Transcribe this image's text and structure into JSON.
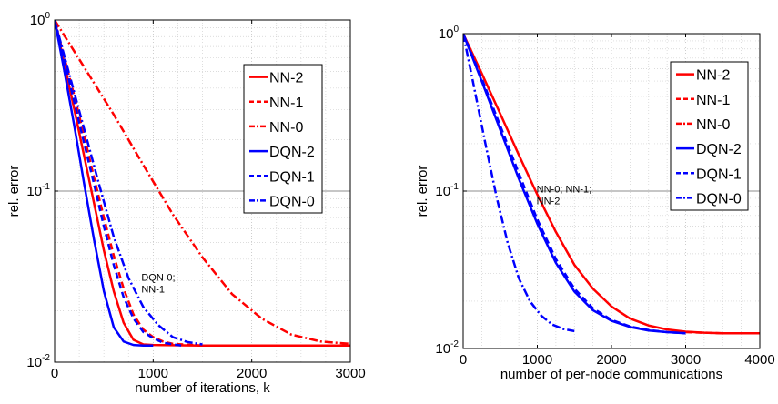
{
  "chart_data": [
    {
      "type": "line",
      "title": "",
      "xlabel": "number of iterations, k",
      "ylabel": "rel. error",
      "xlim": [
        0,
        3000
      ],
      "ylim": [
        0.01,
        1
      ],
      "yscale": "log",
      "grid": true,
      "legend_position": "top-right",
      "x_ticks": [
        "0",
        "1000",
        "2000",
        "3000"
      ],
      "y_ticks": [
        {
          "base": "10",
          "exp": "-2"
        },
        {
          "base": "10",
          "exp": "-1"
        },
        {
          "base": "10",
          "exp": "0"
        }
      ],
      "series": [
        {
          "name": "NN-2",
          "color": "#ff0000",
          "dash": "solid",
          "x": [
            0,
            100,
            200,
            300,
            400,
            500,
            600,
            700,
            800,
            900,
            1000,
            1500,
            3000
          ],
          "y": [
            1,
            0.55,
            0.3,
            0.16,
            0.085,
            0.045,
            0.026,
            0.017,
            0.0135,
            0.0127,
            0.0126,
            0.0125,
            0.0125
          ]
        },
        {
          "name": "NN-1",
          "color": "#ff0000",
          "dash": "dashed",
          "x": [
            0,
            100,
            200,
            300,
            400,
            500,
            600,
            700,
            800,
            900,
            1000,
            1100,
            1200,
            1500,
            3000
          ],
          "y": [
            1,
            0.6,
            0.36,
            0.21,
            0.12,
            0.07,
            0.042,
            0.027,
            0.019,
            0.0155,
            0.014,
            0.0132,
            0.0128,
            0.0125,
            0.0125
          ]
        },
        {
          "name": "NN-0",
          "color": "#ff0000",
          "dash": "dashdot",
          "x": [
            0,
            300,
            600,
            900,
            1200,
            1500,
            1800,
            2100,
            2400,
            2700,
            3000
          ],
          "y": [
            1,
            0.53,
            0.28,
            0.142,
            0.073,
            0.041,
            0.025,
            0.018,
            0.0145,
            0.0132,
            0.0128
          ]
        },
        {
          "name": "DQN-2",
          "color": "#0000ff",
          "dash": "solid",
          "x": [
            0,
            100,
            200,
            300,
            400,
            500,
            600,
            700,
            800,
            900,
            1000
          ],
          "y": [
            1,
            0.5,
            0.24,
            0.11,
            0.052,
            0.026,
            0.016,
            0.0132,
            0.0126,
            0.0125,
            0.0125
          ]
        },
        {
          "name": "DQN-1",
          "color": "#0000ff",
          "dash": "dashed",
          "x": [
            0,
            100,
            200,
            300,
            400,
            500,
            600,
            700,
            800,
            900,
            1000,
            1100,
            1200,
            1300
          ],
          "y": [
            1,
            0.58,
            0.33,
            0.19,
            0.11,
            0.062,
            0.037,
            0.024,
            0.018,
            0.015,
            0.0138,
            0.013,
            0.0127,
            0.0125
          ]
        },
        {
          "name": "DQN-0",
          "color": "#0000ff",
          "dash": "dashdot",
          "x": [
            0,
            150,
            300,
            450,
            600,
            750,
            900,
            1050,
            1200,
            1350,
            1500
          ],
          "y": [
            1,
            0.48,
            0.23,
            0.11,
            0.054,
            0.031,
            0.021,
            0.0165,
            0.014,
            0.0131,
            0.0127
          ]
        }
      ],
      "annotations": [
        {
          "lines": [
            "DQN-0;",
            "NN-1"
          ],
          "x": 880,
          "y": 0.03
        }
      ]
    },
    {
      "type": "line",
      "title": "",
      "xlabel": "number of per-node communications",
      "ylabel": "rel. error",
      "xlim": [
        0,
        4000
      ],
      "ylim": [
        0.01,
        1
      ],
      "yscale": "log",
      "grid": true,
      "legend_position": "top-right",
      "x_ticks": [
        "0",
        "1000",
        "2000",
        "3000",
        "4000"
      ],
      "y_ticks": [
        {
          "base": "10",
          "exp": "-2"
        },
        {
          "base": "10",
          "exp": "-1"
        },
        {
          "base": "10",
          "exp": "0"
        }
      ],
      "series": [
        {
          "name": "NN-2",
          "color": "#ff0000",
          "dash": "solid",
          "x": [
            0,
            250,
            500,
            750,
            1000,
            1250,
            1500,
            1750,
            2000,
            2250,
            2500,
            2750,
            3000,
            3250,
            3500,
            4000
          ],
          "y": [
            1,
            0.56,
            0.31,
            0.17,
            0.095,
            0.055,
            0.034,
            0.024,
            0.0185,
            0.0155,
            0.014,
            0.0132,
            0.0128,
            0.0126,
            0.0125,
            0.0125
          ]
        },
        {
          "name": "NN-1",
          "color": "#ff0000",
          "dash": "dashed",
          "x": [
            3000,
            3250,
            3500,
            3750,
            4000
          ],
          "y": [
            0.0127,
            0.0126,
            0.0125,
            0.0125,
            0.0125
          ]
        },
        {
          "name": "NN-0",
          "color": "#ff0000",
          "dash": "dashdot",
          "x": [
            3600,
            3800,
            4000
          ],
          "y": [
            0.0125,
            0.0125,
            0.0125
          ]
        },
        {
          "name": "DQN-2",
          "color": "#0000ff",
          "dash": "solid",
          "x": [
            0,
            250,
            500,
            750,
            1000,
            1250,
            1500,
            1750,
            2000,
            2250,
            2500,
            2750,
            3000
          ],
          "y": [
            1,
            0.5,
            0.245,
            0.12,
            0.062,
            0.035,
            0.023,
            0.0175,
            0.015,
            0.0137,
            0.013,
            0.0127,
            0.0125
          ]
        },
        {
          "name": "DQN-1",
          "color": "#0000ff",
          "dash": "dashed",
          "x": [
            0,
            250,
            500,
            750,
            1000,
            1250,
            1500,
            1750,
            2000,
            2250,
            2500,
            2750,
            3000
          ],
          "y": [
            1,
            0.52,
            0.26,
            0.13,
            0.066,
            0.037,
            0.024,
            0.018,
            0.0152,
            0.0138,
            0.0131,
            0.0127,
            0.0125
          ]
        },
        {
          "name": "DQN-0",
          "color": "#0000ff",
          "dash": "dashdot",
          "x": [
            0,
            150,
            300,
            450,
            600,
            750,
            900,
            1050,
            1200,
            1350,
            1500
          ],
          "y": [
            1,
            0.45,
            0.2,
            0.092,
            0.047,
            0.028,
            0.02,
            0.0162,
            0.0142,
            0.0133,
            0.0129
          ]
        }
      ],
      "annotations": [
        {
          "lines": [
            "NN-0; NN-1;",
            "NN-2"
          ],
          "x": 990,
          "y": 0.098
        }
      ]
    }
  ]
}
